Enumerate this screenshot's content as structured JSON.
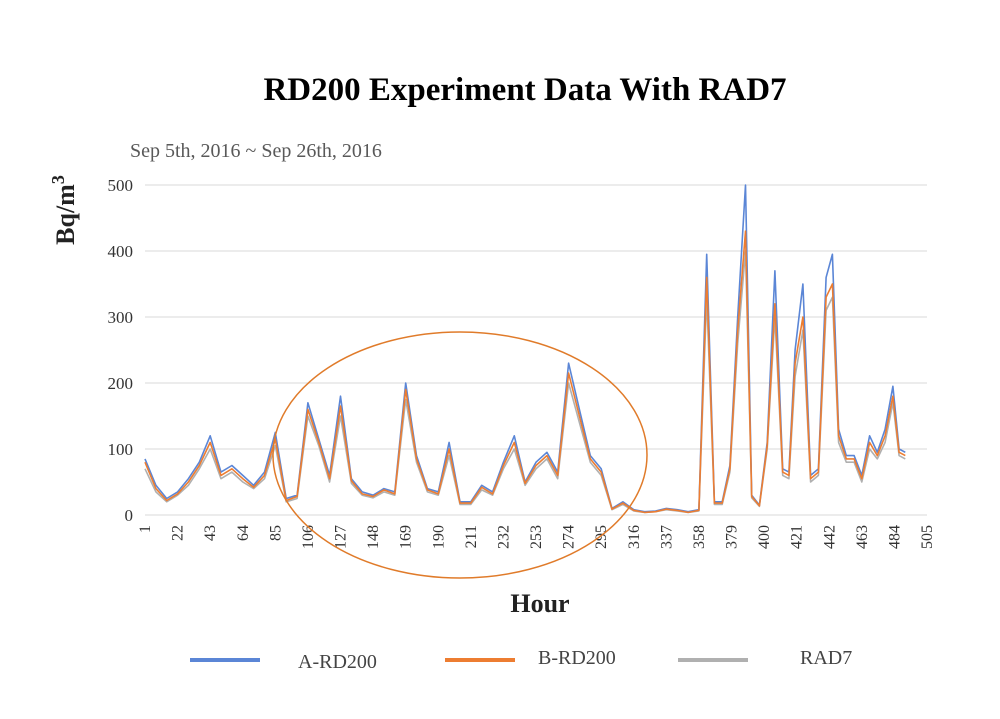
{
  "chart_data": {
    "type": "line",
    "title": "RD200 Experiment Data With RAD7",
    "subtitle": "Sep 5th, 2016 ~ Sep 26th, 2016",
    "xlabel": "Hour",
    "ylabel_base": "Bq/m",
    "ylabel_sup": "3",
    "ylim": [
      0,
      500
    ],
    "xlim": [
      1,
      505
    ],
    "yticks": [
      0,
      100,
      200,
      300,
      400,
      500
    ],
    "xticks": [
      1,
      22,
      43,
      64,
      85,
      106,
      127,
      148,
      169,
      190,
      211,
      232,
      253,
      274,
      295,
      316,
      337,
      358,
      379,
      400,
      421,
      442,
      463,
      484,
      505
    ],
    "grid": true,
    "legend_position": "bottom",
    "annotation": "ellipse highlighting hours ~75–315",
    "x": [
      1,
      8,
      15,
      22,
      29,
      36,
      43,
      50,
      57,
      64,
      71,
      78,
      85,
      92,
      99,
      106,
      113,
      120,
      127,
      134,
      141,
      148,
      155,
      162,
      169,
      176,
      183,
      190,
      197,
      204,
      211,
      218,
      225,
      232,
      239,
      246,
      253,
      260,
      267,
      274,
      281,
      288,
      295,
      302,
      309,
      316,
      323,
      330,
      337,
      344,
      351,
      358,
      363,
      368,
      373,
      378,
      383,
      388,
      392,
      397,
      402,
      407,
      412,
      416,
      420,
      425,
      430,
      435,
      440,
      444,
      448,
      453,
      458,
      463,
      468,
      473,
      478,
      483,
      487,
      491
    ],
    "series": [
      {
        "name": "A-RD200",
        "color": "#5b86d6",
        "values": [
          85,
          45,
          25,
          35,
          55,
          80,
          120,
          65,
          75,
          60,
          45,
          65,
          125,
          25,
          30,
          170,
          115,
          60,
          180,
          55,
          35,
          30,
          40,
          35,
          200,
          90,
          40,
          35,
          110,
          20,
          20,
          45,
          35,
          80,
          120,
          50,
          80,
          95,
          65,
          230,
          160,
          90,
          70,
          10,
          20,
          8,
          5,
          6,
          10,
          8,
          5,
          8,
          395,
          20,
          20,
          75,
          300,
          500,
          30,
          15,
          110,
          370,
          70,
          65,
          250,
          350,
          60,
          70,
          360,
          395,
          130,
          90,
          90,
          60,
          120,
          95,
          130,
          195,
          100,
          95
        ]
      },
      {
        "name": "B-RD200",
        "color": "#ed7d31",
        "values": [
          80,
          40,
          22,
          32,
          50,
          75,
          110,
          60,
          70,
          55,
          42,
          60,
          115,
          22,
          28,
          160,
          110,
          55,
          165,
          52,
          32,
          28,
          38,
          32,
          190,
          85,
          38,
          32,
          100,
          18,
          18,
          42,
          32,
          75,
          110,
          48,
          75,
          90,
          60,
          215,
          150,
          85,
          65,
          9,
          18,
          7,
          4,
          5,
          9,
          7,
          4,
          7,
          360,
          18,
          18,
          70,
          280,
          430,
          28,
          14,
          105,
          320,
          65,
          60,
          230,
          300,
          55,
          65,
          330,
          350,
          120,
          85,
          85,
          55,
          110,
          90,
          120,
          180,
          95,
          90
        ]
      },
      {
        "name": "RAD7",
        "color": "#b0b0b0",
        "values": [
          70,
          35,
          20,
          30,
          45,
          70,
          100,
          55,
          65,
          50,
          40,
          55,
          105,
          20,
          25,
          150,
          105,
          50,
          150,
          48,
          30,
          26,
          35,
          30,
          175,
          80,
          35,
          30,
          90,
          16,
          16,
          38,
          30,
          70,
          100,
          45,
          70,
          85,
          55,
          200,
          140,
          80,
          60,
          8,
          16,
          6,
          4,
          5,
          8,
          6,
          4,
          6,
          330,
          16,
          16,
          65,
          260,
          400,
          26,
          13,
          100,
          300,
          60,
          55,
          210,
          280,
          50,
          60,
          310,
          330,
          110,
          80,
          80,
          50,
          100,
          85,
          110,
          170,
          90,
          85
        ]
      }
    ]
  }
}
